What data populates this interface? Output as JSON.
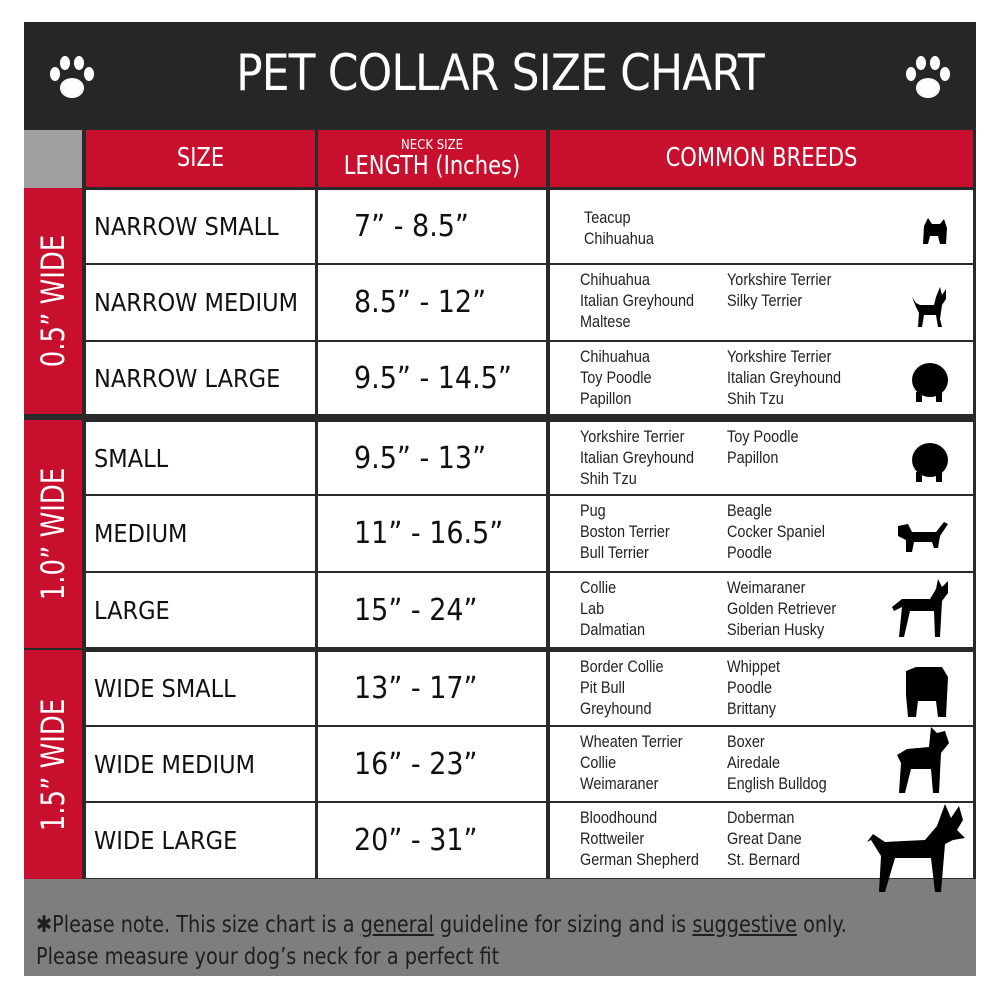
{
  "title": "PET COLLAR SIZE CHART",
  "header": {
    "size": "SIZE",
    "neck_size": "NECK SIZE",
    "length": "LENGTH (Inches)",
    "common_breeds": "COMMON BREEDS"
  },
  "colors": {
    "accent_red": "#c8102e",
    "title_bar": "#262626",
    "footer": "#7e7e80"
  },
  "groups": [
    {
      "label": "0.5” WIDE",
      "rows": [
        {
          "size": "NARROW SMALL",
          "length": "7” - 8.5”",
          "breeds_a": [
            "Teacup",
            "Chihuahua"
          ],
          "breeds_b": [],
          "icon": "yorkie-silhouette-icon"
        },
        {
          "size": "NARROW MEDIUM",
          "length": "8.5” - 12”",
          "breeds_a": [
            "Chihuahua",
            "Italian Greyhound",
            "Maltese"
          ],
          "breeds_b": [
            "Yorkshire Terrier",
            "Silky Terrier"
          ],
          "icon": "chihuahua-silhouette-icon"
        },
        {
          "size": "NARROW LARGE",
          "length": "9.5” - 14.5”",
          "breeds_a": [
            "Chihuahua",
            "Toy Poodle",
            "Papillon"
          ],
          "breeds_b": [
            "Yorkshire Terrier",
            "Italian Greyhound",
            "Shih Tzu"
          ],
          "icon": "pomeranian-silhouette-icon"
        }
      ]
    },
    {
      "label": "1.0” WIDE",
      "rows": [
        {
          "size": "SMALL",
          "length": "9.5” - 13”",
          "breeds_a": [
            "Yorkshire Terrier",
            "Italian Greyhound",
            "Shih Tzu"
          ],
          "breeds_b": [
            "Toy Poodle",
            "Papillon"
          ],
          "icon": "pomeranian-silhouette-icon"
        },
        {
          "size": "MEDIUM",
          "length": "11” - 16.5”",
          "breeds_a": [
            "Pug",
            "Boston Terrier",
            "Bull Terrier"
          ],
          "breeds_b": [
            "Beagle",
            "Cocker Spaniel",
            "Poodle"
          ],
          "icon": "dachshund-silhouette-icon"
        },
        {
          "size": "LARGE",
          "length": "15” - 24”",
          "breeds_a": [
            "Collie",
            "Lab",
            "Dalmatian"
          ],
          "breeds_b": [
            "Weimaraner",
            "Golden Retriever",
            "Siberian Husky"
          ],
          "icon": "shepherd-silhouette-icon"
        }
      ]
    },
    {
      "label": "1.5” WIDE",
      "rows": [
        {
          "size": "WIDE SMALL",
          "length": "13” - 17”",
          "breeds_a": [
            "Border Collie",
            "Pit Bull",
            "Greyhound"
          ],
          "breeds_b": [
            "Whippet",
            "Poodle",
            "Brittany"
          ],
          "icon": "bulldog-silhouette-icon"
        },
        {
          "size": "WIDE MEDIUM",
          "length": "16” - 23”",
          "breeds_a": [
            "Wheaten Terrier",
            "Collie",
            "Weimaraner"
          ],
          "breeds_b": [
            "Boxer",
            "Airedale",
            "English Bulldog"
          ],
          "icon": "pitbull-silhouette-icon"
        },
        {
          "size": "WIDE LARGE",
          "length": "20” - 31”",
          "breeds_a": [
            "Bloodhound",
            "Rottweiler",
            "German Shepherd"
          ],
          "breeds_b": [
            "Doberman",
            "Great Dane",
            "St. Bernard"
          ],
          "icon": "doberman-silhouette-icon"
        }
      ]
    }
  ],
  "footer": {
    "note_start": "✱Please note. This size chart is a ",
    "general": "general",
    "note_mid": " guideline for sizing and is ",
    "suggestive": "suggestive",
    "note_end": " only.",
    "line2": "Please measure your dog’s neck for a perfect fit"
  }
}
